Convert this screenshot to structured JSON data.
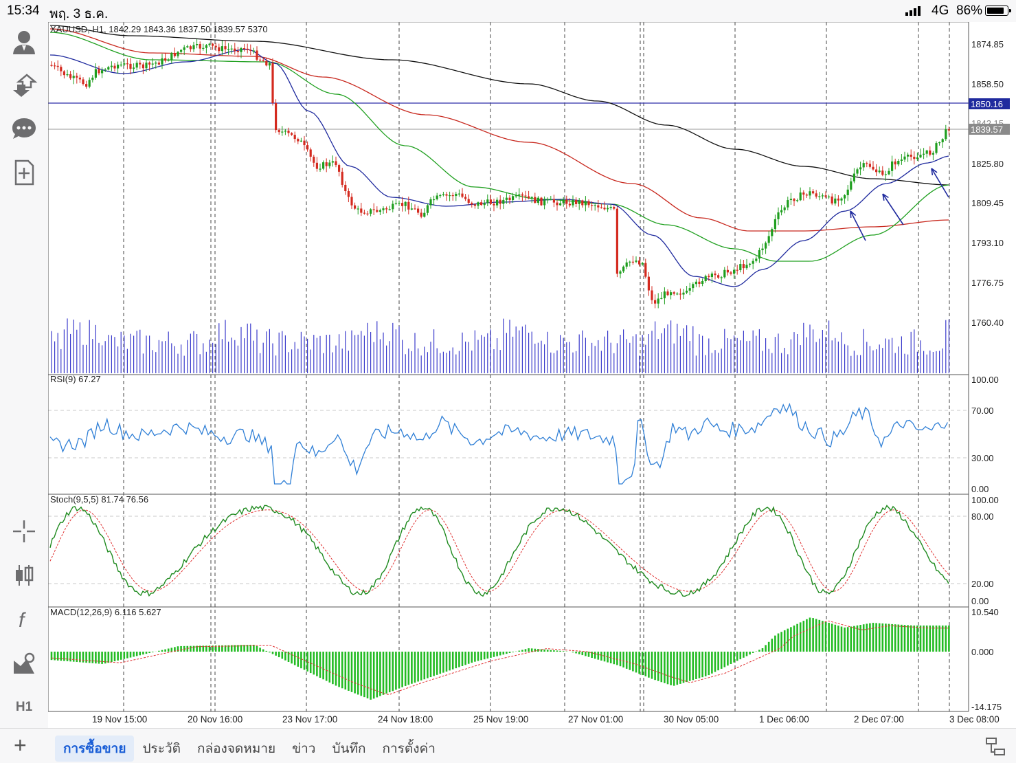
{
  "status": {
    "time": "15:34",
    "date": "พฤ. 3 ธ.ค.",
    "network": "4G",
    "battery": "86%",
    "battery_level": 0.86
  },
  "left_toolbar": {
    "top_icons": [
      "account-icon",
      "trade-icon",
      "chat-icon",
      "new-order-icon"
    ],
    "bottom_icons": [
      "crosshair-icon",
      "chart-type-icon",
      "indicators-icon",
      "objects-icon"
    ],
    "timeframe": "H1"
  },
  "chart": {
    "symbol_info": "XAUUSD, H1, 1842.29 1843.36 1837.50 1839.57 5370",
    "price_ticks": [
      "1874.85",
      "1858.50",
      "1825.80",
      "1809.45",
      "1793.10",
      "1776.75",
      "1760.40"
    ],
    "hidden_tick": "1842.15",
    "hline_price": "1850.16",
    "current_price": "1839.57",
    "time_labels": [
      "19 Nov 15:00",
      "20 Nov 16:00",
      "23 Nov 17:00",
      "24 Nov 18:00",
      "25 Nov 19:00",
      "27 Nov 01:00",
      "30 Nov 05:00",
      "1 Dec 06:00",
      "2 Dec 07:00",
      "3 Dec 08:00"
    ],
    "rsi": {
      "label": "RSI(9) 67.27",
      "ticks": [
        "100.00",
        "70.00",
        "30.00",
        "0.00"
      ]
    },
    "stoch": {
      "label": "Stoch(9,5,5) 81.74 76.56",
      "ticks": [
        "100.00",
        "80.00",
        "20.00",
        "0.00"
      ]
    },
    "macd": {
      "label": "MACD(12,26,9) 6.116 5.627",
      "ticks": [
        "10.540",
        "0.000",
        "-14.175"
      ]
    },
    "colors": {
      "bull": "#1e9e1e",
      "bear": "#d42a1f",
      "ma_fast": "#1f2a9e",
      "ma_mid": "#20a020",
      "ma_slow": "#c8281e",
      "ma_long": "#111111",
      "rsi": "#2f7fd6",
      "stoch_main": "#1e8a1e",
      "stoch_signal": "#e03030",
      "macd_hist": "#22bb22",
      "hline": "#2a2aa8",
      "volume": "#3a3acc"
    }
  },
  "bottom_tabs": [
    "การซื้อขาย",
    "ประวัติ",
    "กล่องจดหมาย",
    "ข่าว",
    "บันทึก",
    "การตั้งค่า"
  ],
  "active_tab": 0
}
